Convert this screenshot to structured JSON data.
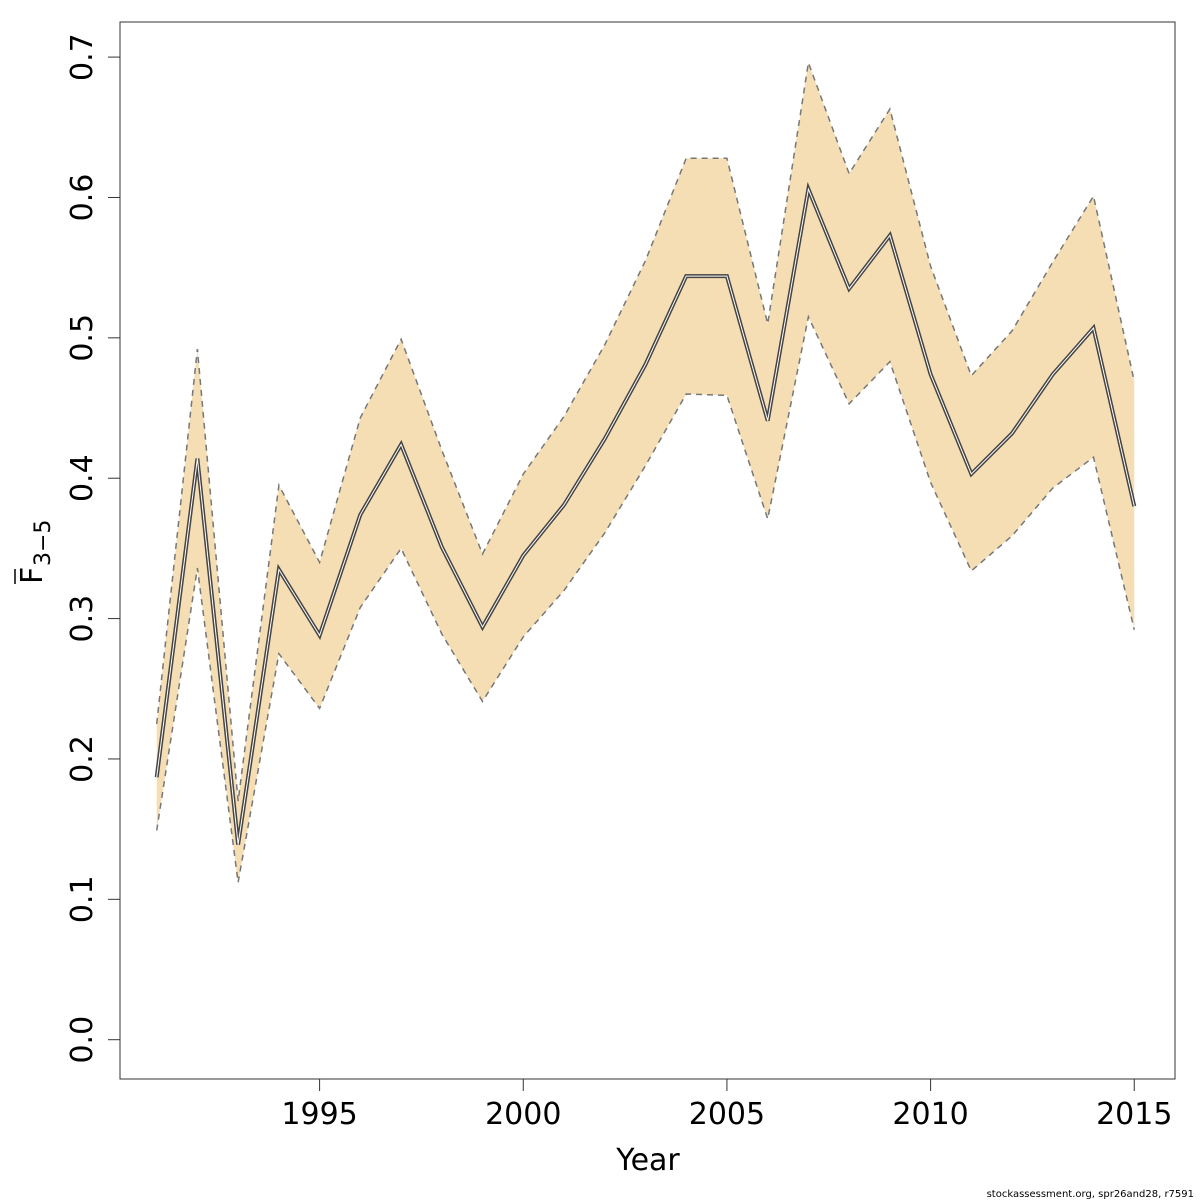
{
  "chart_data": {
    "type": "area",
    "title": "",
    "xlabel": "Year",
    "ylabel": {
      "main": "F",
      "subscript": "3−5"
    },
    "xlim": [
      1990.1,
      2016.0
    ],
    "ylim": [
      -0.028,
      0.725
    ],
    "x_ticks": [
      1995,
      2000,
      2005,
      2010,
      2015
    ],
    "x_tick_labels": [
      "1995",
      "2000",
      "2005",
      "2010",
      "2015"
    ],
    "y_ticks": [
      0.0,
      0.1,
      0.2,
      0.3,
      0.4,
      0.5,
      0.6,
      0.7
    ],
    "y_tick_labels": [
      "0.0",
      "0.1",
      "0.2",
      "0.3",
      "0.4",
      "0.5",
      "0.6",
      "0.7"
    ],
    "grid": false,
    "x": [
      1991,
      1992,
      1993,
      1994,
      1995,
      1996,
      1997,
      1998,
      1999,
      2000,
      2001,
      2002,
      2003,
      2004,
      2005,
      2006,
      2007,
      2008,
      2009,
      2010,
      2011,
      2012,
      2013,
      2014,
      2015
    ],
    "series": [
      {
        "role": "estimate",
        "values": [
          0.187,
          0.414,
          0.139,
          0.335,
          0.288,
          0.374,
          0.424,
          0.351,
          0.294,
          0.345,
          0.381,
          0.428,
          0.481,
          0.544,
          0.544,
          0.441,
          0.606,
          0.535,
          0.573,
          0.474,
          0.403,
          0.432,
          0.474,
          0.507,
          0.38
        ]
      },
      {
        "role": "upper",
        "values": [
          0.225,
          0.492,
          0.17,
          0.395,
          0.34,
          0.443,
          0.499,
          0.42,
          0.346,
          0.403,
          0.444,
          0.495,
          0.555,
          0.628,
          0.628,
          0.51,
          0.696,
          0.617,
          0.663,
          0.551,
          0.473,
          0.505,
          0.554,
          0.601,
          0.469
        ]
      },
      {
        "role": "lower",
        "values": [
          0.149,
          0.336,
          0.112,
          0.275,
          0.236,
          0.308,
          0.35,
          0.289,
          0.241,
          0.287,
          0.32,
          0.361,
          0.409,
          0.46,
          0.459,
          0.371,
          0.515,
          0.453,
          0.483,
          0.397,
          0.334,
          0.359,
          0.393,
          0.415,
          0.292
        ]
      }
    ],
    "colors": {
      "band_fill": "#f5deb3",
      "bound_line": "#777777",
      "estimate_line": "#444444",
      "axis": "#333333"
    }
  },
  "footer": {
    "credit": "stockassessment.org, spr26and28, r7591"
  }
}
